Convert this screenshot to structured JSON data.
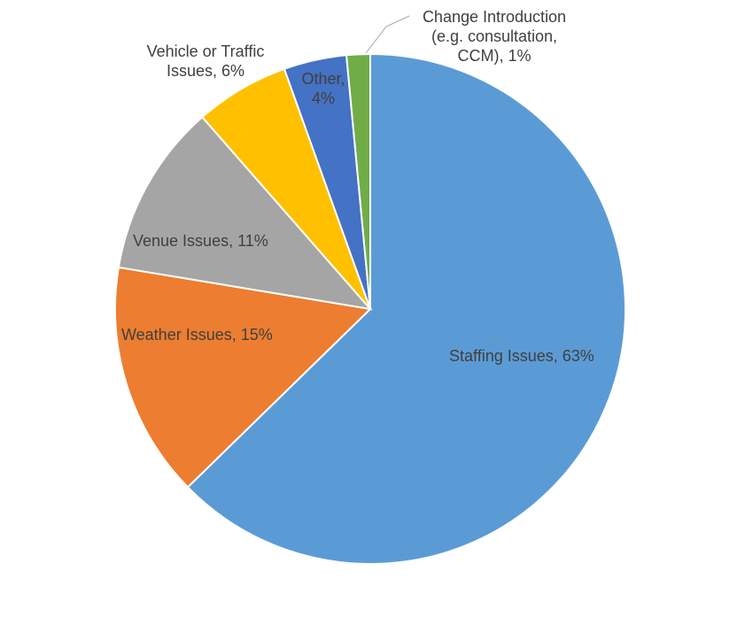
{
  "chart_data": {
    "type": "pie",
    "title": "",
    "start_angle_deg": 0,
    "direction": "clockwise",
    "slice_border_color": "#ffffff",
    "slices": [
      {
        "name": "Staffing Issues",
        "value": 63,
        "color": "#5B9BD5",
        "label_lines": [
          "Staffing Issues, 63%"
        ],
        "label_anchor": "start"
      },
      {
        "name": "Weather Issues",
        "value": 15,
        "color": "#ED7D31",
        "label_lines": [
          "Weather Issues, 15%"
        ],
        "label_anchor": "start"
      },
      {
        "name": "Venue Issues",
        "value": 11,
        "color": "#A5A5A5",
        "label_lines": [
          "Venue Issues, 11%"
        ],
        "label_anchor": "start"
      },
      {
        "name": "Vehicle or Traffic Issues",
        "value": 6,
        "color": "#FFC000",
        "label_lines": [
          "Vehicle or Traffic",
          "Issues, 6%"
        ],
        "label_anchor": "middle"
      },
      {
        "name": "Other",
        "value": 4,
        "color": "#4472C4",
        "label_lines": [
          "Other,",
          "4%"
        ],
        "label_anchor": "middle"
      },
      {
        "name": "Change Introduction (e.g. consultation, CCM)",
        "value": 1.5,
        "color": "#70AD47",
        "label_lines": [
          "Change Introduction",
          "(e.g. consultation,",
          "CCM), 1%"
        ],
        "label_anchor": "middle",
        "leader_line": true,
        "leader_color": "#A5A5A5"
      }
    ]
  }
}
